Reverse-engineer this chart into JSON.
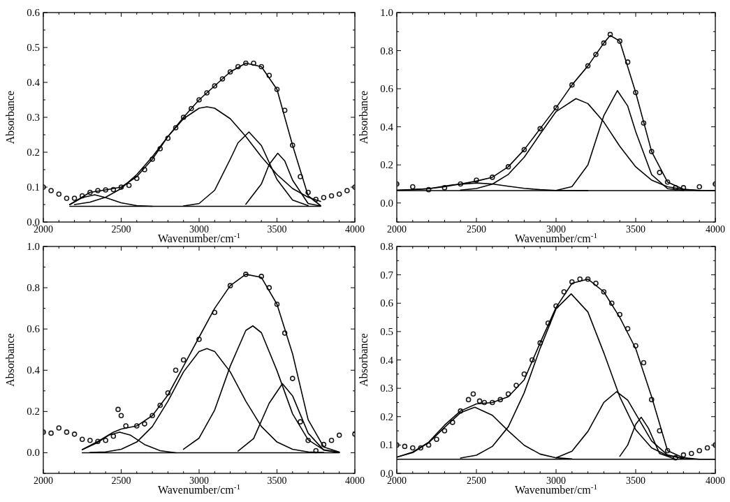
{
  "chart_data": [
    {
      "type": "line",
      "xlabel": "Wavenumber/cm$^{-1}$",
      "ylabel": "Absorbance",
      "xlim": [
        2000,
        4000
      ],
      "ylim": [
        0,
        0.6
      ],
      "xticks": [
        2000,
        {
          "value": 2100,
          "label": null
        },
        {
          "value": 2200,
          "label": null
        },
        {
          "value": 2300,
          "label": null
        },
        {
          "value": 2400,
          "label": null
        },
        2500,
        {
          "value": 2600,
          "label": null
        },
        {
          "value": 2700,
          "label": null
        },
        {
          "value": 2800,
          "label": null
        },
        {
          "value": 2900,
          "label": null
        },
        3000,
        {
          "value": 3100,
          "label": null
        },
        {
          "value": 3200,
          "label": null
        },
        {
          "value": 3300,
          "label": null
        },
        {
          "value": 3400,
          "label": null
        },
        3500,
        {
          "value": 3600,
          "label": null
        },
        {
          "value": 3700,
          "label": null
        },
        {
          "value": 3800,
          "label": null
        },
        {
          "value": 3900,
          "label": null
        },
        4000
      ],
      "yticks": [
        {
          "value": 0,
          "label": "0.0"
        },
        {
          "value": 0.05,
          "label": null
        },
        0.1,
        {
          "value": 0.15,
          "label": null
        },
        0.2,
        {
          "value": 0.25,
          "label": null
        },
        0.3,
        {
          "value": 0.35,
          "label": null
        },
        0.4,
        {
          "value": 0.45,
          "label": null
        },
        0.5,
        {
          "value": 0.55,
          "label": null
        },
        0.6
      ],
      "series": [
        {
          "type": "scatter",
          "color": "#1a1a1a",
          "x": [
            2000,
            2050,
            2100,
            2150,
            2200,
            2250,
            2300,
            2350,
            2400,
            2450,
            2500,
            2550,
            2600,
            2650,
            2700,
            2750,
            2800,
            2850,
            2900,
            2950,
            3000,
            3050,
            3100,
            3150,
            3200,
            3250,
            3300,
            3350,
            3400,
            3450,
            3500,
            3550,
            3600,
            3650,
            3700,
            3750,
            3800,
            3850,
            3900,
            3950,
            4000
          ],
          "values": [
            0.1,
            0.09,
            0.08,
            0.068,
            0.068,
            0.075,
            0.085,
            0.09,
            0.092,
            0.093,
            0.1,
            0.105,
            0.125,
            0.15,
            0.18,
            0.21,
            0.24,
            0.27,
            0.3,
            0.325,
            0.35,
            0.37,
            0.39,
            0.41,
            0.43,
            0.445,
            0.455,
            0.455,
            0.445,
            0.42,
            0.38,
            0.32,
            0.22,
            0.13,
            0.085,
            0.065,
            0.07,
            0.075,
            0.08,
            0.09,
            0.1
          ]
        },
        {
          "type": "line",
          "color": "#000000",
          "x": [
            2170,
            2300,
            2400,
            2500,
            2600,
            2700,
            2800,
            2900,
            3000,
            3100,
            3200,
            3300,
            3400,
            3500,
            3600,
            3700,
            3780
          ],
          "values": [
            0.05,
            0.085,
            0.092,
            0.1,
            0.13,
            0.18,
            0.245,
            0.3,
            0.35,
            0.39,
            0.43,
            0.455,
            0.445,
            0.38,
            0.22,
            0.075,
            0.047
          ]
        },
        {
          "type": "line",
          "color": "#000000",
          "x": [
            2170,
            3780
          ],
          "values": [
            0.045,
            0.045
          ]
        },
        {
          "type": "line",
          "color": "#000000",
          "x": [
            2170,
            2250,
            2330,
            2400,
            2500,
            2600,
            2700
          ],
          "values": [
            0.05,
            0.07,
            0.078,
            0.07,
            0.055,
            0.047,
            0.045
          ]
        },
        {
          "type": "line",
          "color": "#000000",
          "x": [
            2200,
            2300,
            2400,
            2500,
            2600,
            2700,
            2800,
            2900,
            3000,
            3050,
            3100,
            3200,
            3300,
            3400,
            3500,
            3600,
            3700,
            3780
          ],
          "values": [
            0.05,
            0.057,
            0.071,
            0.096,
            0.136,
            0.187,
            0.245,
            0.296,
            0.326,
            0.33,
            0.326,
            0.296,
            0.245,
            0.187,
            0.136,
            0.096,
            0.071,
            0.059
          ]
        },
        {
          "type": "line",
          "color": "#000000",
          "x": [
            2900,
            3000,
            3100,
            3200,
            3250,
            3320,
            3400,
            3500,
            3600,
            3700
          ],
          "values": [
            0.046,
            0.053,
            0.091,
            0.18,
            0.227,
            0.258,
            0.219,
            0.122,
            0.063,
            0.047
          ]
        },
        {
          "type": "line",
          "color": "#000000",
          "x": [
            3300,
            3400,
            3450,
            3505,
            3550,
            3600,
            3700,
            3780
          ],
          "values": [
            0.051,
            0.109,
            0.165,
            0.197,
            0.175,
            0.12,
            0.053,
            0.046
          ]
        }
      ]
    },
    {
      "type": "line",
      "xlabel": "Wavenumber/cm$^{-1}$",
      "ylabel": "Absorbance",
      "xlim": [
        2000,
        4000
      ],
      "ylim": [
        -0.1,
        1.0
      ],
      "xticks": [
        2000,
        {
          "value": 2100,
          "label": null
        },
        {
          "value": 2200,
          "label": null
        },
        {
          "value": 2300,
          "label": null
        },
        {
          "value": 2400,
          "label": null
        },
        2500,
        {
          "value": 2600,
          "label": null
        },
        {
          "value": 2700,
          "label": null
        },
        {
          "value": 2800,
          "label": null
        },
        {
          "value": 2900,
          "label": null
        },
        3000,
        {
          "value": 3100,
          "label": null
        },
        {
          "value": 3200,
          "label": null
        },
        {
          "value": 3300,
          "label": null
        },
        {
          "value": 3400,
          "label": null
        },
        3500,
        {
          "value": 3600,
          "label": null
        },
        {
          "value": 3700,
          "label": null
        },
        {
          "value": 3800,
          "label": null
        },
        {
          "value": 3900,
          "label": null
        },
        4000
      ],
      "yticks": [
        {
          "value": -0.1,
          "label": null
        },
        {
          "value": 0,
          "label": "0.0"
        },
        {
          "value": 0.1,
          "label": null
        },
        0.2,
        {
          "value": 0.3,
          "label": null
        },
        0.4,
        {
          "value": 0.5,
          "label": null
        },
        0.6,
        {
          "value": 0.7,
          "label": null
        },
        0.8,
        {
          "value": 0.9,
          "label": null
        },
        {
          "value": 1,
          "label": "1.0"
        }
      ],
      "series": [
        {
          "type": "scatter",
          "color": "#1a1a1a",
          "x": [
            2000,
            2100,
            2200,
            2300,
            2400,
            2500,
            2600,
            2700,
            2800,
            2900,
            3000,
            3100,
            3200,
            3250,
            3300,
            3340,
            3400,
            3450,
            3500,
            3550,
            3600,
            3650,
            3700,
            3750,
            3800,
            3900,
            4000
          ],
          "values": [
            0.1,
            0.085,
            0.07,
            0.08,
            0.1,
            0.12,
            0.135,
            0.19,
            0.28,
            0.39,
            0.5,
            0.62,
            0.72,
            0.78,
            0.84,
            0.885,
            0.85,
            0.74,
            0.58,
            0.42,
            0.27,
            0.16,
            0.11,
            0.08,
            0.08,
            0.085,
            0.1
          ]
        },
        {
          "type": "line",
          "color": "#000000",
          "x": [
            2000,
            2100,
            2200,
            2300,
            2400,
            2500,
            2600,
            2700,
            2800,
            2900,
            3000,
            3100,
            3200,
            3300,
            3340,
            3400,
            3500,
            3600,
            3700,
            3800,
            3900,
            4000
          ],
          "values": [
            0.067,
            0.07,
            0.075,
            0.085,
            0.1,
            0.115,
            0.135,
            0.19,
            0.28,
            0.39,
            0.5,
            0.62,
            0.72,
            0.84,
            0.88,
            0.85,
            0.58,
            0.27,
            0.11,
            0.072,
            0.066,
            0.065
          ]
        },
        {
          "type": "line",
          "color": "#000000",
          "x": [
            2000,
            4000
          ],
          "values": [
            0.065,
            0.065
          ]
        },
        {
          "type": "line",
          "color": "#000000",
          "x": [
            2000,
            2200,
            2350,
            2500,
            2600,
            2700,
            2800,
            2900,
            3000,
            3200
          ],
          "values": [
            0.067,
            0.075,
            0.095,
            0.105,
            0.1,
            0.088,
            0.077,
            0.07,
            0.066,
            0.065
          ]
        },
        {
          "type": "line",
          "color": "#000000",
          "x": [
            2400,
            2500,
            2600,
            2700,
            2800,
            2900,
            3000,
            3125,
            3200,
            3300,
            3400,
            3500,
            3600,
            3700,
            3800,
            3900
          ],
          "values": [
            0.068,
            0.076,
            0.099,
            0.15,
            0.24,
            0.362,
            0.48,
            0.548,
            0.522,
            0.425,
            0.298,
            0.19,
            0.12,
            0.085,
            0.071,
            0.066
          ]
        },
        {
          "type": "line",
          "color": "#000000",
          "x": [
            3000,
            3100,
            3200,
            3300,
            3385,
            3450,
            3500,
            3600,
            3700,
            3800
          ],
          "values": [
            0.066,
            0.086,
            0.2,
            0.459,
            0.59,
            0.509,
            0.375,
            0.149,
            0.075,
            0.066
          ]
        }
      ]
    },
    {
      "type": "line",
      "xlabel": "Wavenumber/cm$^{-1}$",
      "ylabel": "Absorbance",
      "xlim": [
        2000,
        4000
      ],
      "ylim": [
        -0.1,
        1.0
      ],
      "xticks": [
        2000,
        {
          "value": 2100,
          "label": null
        },
        {
          "value": 2200,
          "label": null
        },
        {
          "value": 2300,
          "label": null
        },
        {
          "value": 2400,
          "label": null
        },
        2500,
        {
          "value": 2600,
          "label": null
        },
        {
          "value": 2700,
          "label": null
        },
        {
          "value": 2800,
          "label": null
        },
        {
          "value": 2900,
          "label": null
        },
        3000,
        {
          "value": 3100,
          "label": null
        },
        {
          "value": 3200,
          "label": null
        },
        {
          "value": 3300,
          "label": null
        },
        {
          "value": 3400,
          "label": null
        },
        3500,
        {
          "value": 3600,
          "label": null
        },
        {
          "value": 3700,
          "label": null
        },
        {
          "value": 3800,
          "label": null
        },
        {
          "value": 3900,
          "label": null
        },
        4000
      ],
      "yticks": [
        {
          "value": -0.1,
          "label": null
        },
        {
          "value": 0,
          "label": "0.0"
        },
        {
          "value": 0.1,
          "label": null
        },
        0.2,
        {
          "value": 0.3,
          "label": null
        },
        0.4,
        {
          "value": 0.5,
          "label": null
        },
        0.6,
        {
          "value": 0.7,
          "label": null
        },
        0.8,
        {
          "value": 0.9,
          "label": null
        },
        {
          "value": 1,
          "label": "1.0"
        }
      ],
      "series": [
        {
          "type": "scatter",
          "color": "#1a1a1a",
          "x": [
            2000,
            2050,
            2100,
            2150,
            2200,
            2250,
            2300,
            2350,
            2400,
            2450,
            2480,
            2500,
            2530,
            2600,
            2650,
            2700,
            2750,
            2800,
            2850,
            2900,
            3000,
            3100,
            3200,
            3300,
            3400,
            3450,
            3500,
            3550,
            3600,
            3650,
            3700,
            3750,
            3800,
            3850,
            3900,
            4000
          ],
          "values": [
            0.1,
            0.095,
            0.12,
            0.1,
            0.09,
            0.065,
            0.06,
            0.055,
            0.06,
            0.08,
            0.21,
            0.18,
            0.13,
            0.13,
            0.14,
            0.18,
            0.23,
            0.29,
            0.4,
            0.45,
            0.55,
            0.68,
            0.81,
            0.865,
            0.855,
            0.8,
            0.72,
            0.58,
            0.36,
            0.15,
            0.06,
            0.01,
            0.04,
            0.06,
            0.085,
            0.09
          ]
        },
        {
          "type": "line",
          "color": "#000000",
          "x": [
            2250,
            2350,
            2450,
            2500,
            2600,
            2700,
            2800,
            2900,
            3000,
            3100,
            3200,
            3300,
            3400,
            3500,
            3600,
            3700,
            3800,
            3900
          ],
          "values": [
            0.015,
            0.055,
            0.1,
            0.115,
            0.13,
            0.18,
            0.28,
            0.42,
            0.56,
            0.7,
            0.81,
            0.865,
            0.85,
            0.72,
            0.48,
            0.16,
            0.028,
            0.003
          ]
        },
        {
          "type": "line",
          "color": "#000000",
          "x": [
            2250,
            3900
          ],
          "values": [
            0,
            0
          ]
        },
        {
          "type": "line",
          "color": "#000000",
          "x": [
            2250,
            2350,
            2420,
            2490,
            2560,
            2650,
            2750,
            2850
          ],
          "values": [
            0.015,
            0.05,
            0.085,
            0.1,
            0.085,
            0.04,
            0.01,
            0
          ]
        },
        {
          "type": "line",
          "color": "#000000",
          "x": [
            2300,
            2400,
            2500,
            2600,
            2700,
            2800,
            2900,
            3000,
            3050,
            3100,
            3200,
            3300,
            3400,
            3500,
            3600,
            3700,
            3800
          ],
          "values": [
            0.001,
            0.004,
            0.017,
            0.052,
            0.127,
            0.25,
            0.392,
            0.491,
            0.505,
            0.491,
            0.392,
            0.25,
            0.127,
            0.052,
            0.017,
            0.004,
            0.001
          ]
        },
        {
          "type": "line",
          "color": "#000000",
          "x": [
            2900,
            3000,
            3100,
            3200,
            3300,
            3345,
            3400,
            3500,
            3600,
            3700,
            3800,
            3900
          ],
          "values": [
            0.017,
            0.071,
            0.207,
            0.42,
            0.593,
            0.615,
            0.582,
            0.398,
            0.189,
            0.063,
            0.014,
            0.002
          ]
        },
        {
          "type": "line",
          "color": "#000000",
          "x": [
            3250,
            3350,
            3450,
            3535,
            3600,
            3700,
            3800,
            3900
          ],
          "values": [
            0.008,
            0.069,
            0.24,
            0.335,
            0.276,
            0.095,
            0.013,
            0.001
          ]
        }
      ]
    },
    {
      "type": "line",
      "xlabel": "Wavenumber/cm$^{-1}$",
      "ylabel": "Absorbance",
      "xlim": [
        2000,
        4000
      ],
      "ylim": [
        0,
        0.8
      ],
      "xticks": [
        2000,
        {
          "value": 2100,
          "label": null
        },
        {
          "value": 2200,
          "label": null
        },
        {
          "value": 2300,
          "label": null
        },
        {
          "value": 2400,
          "label": null
        },
        2500,
        {
          "value": 2600,
          "label": null
        },
        {
          "value": 2700,
          "label": null
        },
        {
          "value": 2800,
          "label": null
        },
        {
          "value": 2900,
          "label": null
        },
        3000,
        {
          "value": 3100,
          "label": null
        },
        {
          "value": 3200,
          "label": null
        },
        {
          "value": 3300,
          "label": null
        },
        {
          "value": 3400,
          "label": null
        },
        3500,
        {
          "value": 3600,
          "label": null
        },
        {
          "value": 3700,
          "label": null
        },
        {
          "value": 3800,
          "label": null
        },
        {
          "value": 3900,
          "label": null
        },
        4000
      ],
      "yticks": [
        {
          "value": 0,
          "label": "0.0"
        },
        {
          "value": 0.05,
          "label": null
        },
        0.1,
        {
          "value": 0.15,
          "label": null
        },
        0.2,
        {
          "value": 0.25,
          "label": null
        },
        0.3,
        {
          "value": 0.35,
          "label": null
        },
        0.4,
        {
          "value": 0.45,
          "label": null
        },
        0.5,
        {
          "value": 0.55,
          "label": null
        },
        0.6,
        {
          "value": 0.65,
          "label": null
        },
        0.7,
        {
          "value": 0.75,
          "label": null
        },
        0.8
      ],
      "series": [
        {
          "type": "scatter",
          "color": "#1a1a1a",
          "x": [
            2000,
            2050,
            2100,
            2150,
            2200,
            2250,
            2300,
            2350,
            2400,
            2450,
            2480,
            2520,
            2550,
            2600,
            2650,
            2700,
            2750,
            2800,
            2850,
            2900,
            2950,
            3000,
            3050,
            3100,
            3150,
            3200,
            3250,
            3300,
            3350,
            3400,
            3450,
            3500,
            3550,
            3600,
            3650,
            3700,
            3750,
            3800,
            3850,
            3900,
            3950,
            4000
          ],
          "values": [
            0.1,
            0.095,
            0.09,
            0.09,
            0.1,
            0.12,
            0.15,
            0.18,
            0.22,
            0.26,
            0.28,
            0.255,
            0.25,
            0.25,
            0.26,
            0.28,
            0.31,
            0.35,
            0.4,
            0.46,
            0.53,
            0.59,
            0.64,
            0.675,
            0.685,
            0.685,
            0.67,
            0.64,
            0.6,
            0.56,
            0.51,
            0.45,
            0.39,
            0.26,
            0.15,
            0.08,
            0.055,
            0.065,
            0.07,
            0.08,
            0.09,
            0.1
          ]
        },
        {
          "type": "line",
          "color": "#000000",
          "x": [
            2000,
            2100,
            2200,
            2300,
            2400,
            2500,
            2600,
            2700,
            2800,
            2900,
            3000,
            3100,
            3200,
            3300,
            3400,
            3500,
            3600,
            3700,
            3800,
            3900,
            4000
          ],
          "values": [
            0.057,
            0.075,
            0.11,
            0.17,
            0.22,
            0.245,
            0.25,
            0.27,
            0.33,
            0.46,
            0.585,
            0.67,
            0.685,
            0.64,
            0.55,
            0.44,
            0.27,
            0.08,
            0.055,
            0.05,
            0.05
          ]
        },
        {
          "type": "line",
          "color": "#000000",
          "x": [
            2000,
            4000
          ],
          "values": [
            0.05,
            0.05
          ]
        },
        {
          "type": "line",
          "color": "#000000",
          "x": [
            2000,
            2100,
            2200,
            2300,
            2400,
            2490,
            2600,
            2700,
            2800,
            2900,
            3000,
            3100
          ],
          "values": [
            0.057,
            0.073,
            0.108,
            0.162,
            0.214,
            0.233,
            0.205,
            0.15,
            0.099,
            0.068,
            0.055,
            0.051
          ]
        },
        {
          "type": "line",
          "color": "#000000",
          "x": [
            2400,
            2500,
            2600,
            2700,
            2800,
            2900,
            3000,
            3095,
            3200,
            3300,
            3400,
            3500,
            3600,
            3700,
            3800
          ],
          "values": [
            0.054,
            0.064,
            0.095,
            0.164,
            0.284,
            0.441,
            0.58,
            0.633,
            0.569,
            0.425,
            0.27,
            0.154,
            0.09,
            0.063,
            0.053
          ]
        },
        {
          "type": "line",
          "color": "#000000",
          "x": [
            3000,
            3100,
            3200,
            3300,
            3380,
            3450,
            3500,
            3600,
            3700,
            3800
          ],
          "values": [
            0.055,
            0.078,
            0.148,
            0.25,
            0.288,
            0.258,
            0.21,
            0.114,
            0.065,
            0.052
          ]
        },
        {
          "type": "line",
          "color": "#000000",
          "x": [
            3400,
            3450,
            3500,
            3535,
            3580,
            3650,
            3750
          ],
          "values": [
            0.06,
            0.1,
            0.173,
            0.198,
            0.159,
            0.07,
            0.05
          ]
        }
      ]
    }
  ]
}
